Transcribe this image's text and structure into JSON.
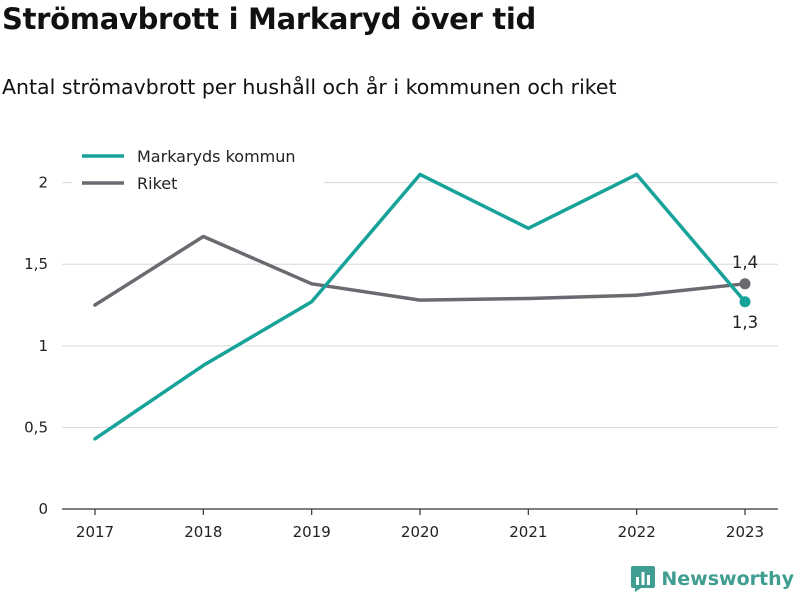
{
  "chart_data": {
    "type": "line",
    "title": "Strömavbrott i Markaryd över tid",
    "subtitle": "Antal strömavbrott per hushåll och år i kommunen och riket",
    "xlabel": "",
    "ylabel": "",
    "categories": [
      "2017",
      "2018",
      "2019",
      "2020",
      "2021",
      "2022",
      "2023"
    ],
    "ylim": [
      0,
      2.2
    ],
    "yticks": [
      0,
      0.5,
      1,
      1.5,
      2
    ],
    "ytick_labels": [
      "0",
      "0,5",
      "1",
      "1,5",
      "2"
    ],
    "grid": true,
    "legend_position": "top-left",
    "series": [
      {
        "name": "Markaryds kommun",
        "color": "#17a39a",
        "values": [
          0.43,
          0.88,
          1.27,
          2.05,
          1.72,
          2.05,
          1.27
        ],
        "end_label": "1,3"
      },
      {
        "name": "Riket",
        "color": "#6b6a70",
        "values": [
          1.25,
          1.67,
          1.38,
          1.28,
          1.29,
          1.31,
          1.38
        ],
        "end_label": "1,4"
      }
    ]
  },
  "brand": {
    "name": "Newsworthy",
    "color": "#3f9d91",
    "icon": "bar-chart-logo-icon"
  }
}
